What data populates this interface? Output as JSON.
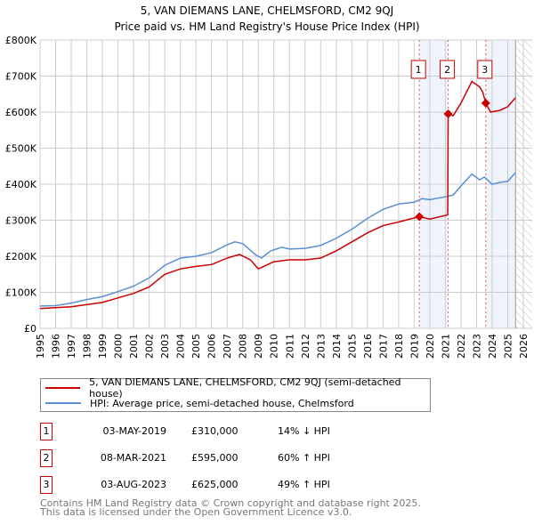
{
  "chart_data": {
    "type": "line",
    "title": "5, VAN DIEMANS LANE, CHELMSFORD, CM2 9QJ",
    "subtitle": "Price paid vs. HM Land Registry's House Price Index (HPI)",
    "ylim": [
      0,
      800000
    ],
    "xlim": [
      1995,
      2026
    ],
    "yticks": [
      {
        "v": 0,
        "label": "£0"
      },
      {
        "v": 100000,
        "label": "£100K"
      },
      {
        "v": 200000,
        "label": "£200K"
      },
      {
        "v": 300000,
        "label": "£300K"
      },
      {
        "v": 400000,
        "label": "£400K"
      },
      {
        "v": 500000,
        "label": "£500K"
      },
      {
        "v": 600000,
        "label": "£600K"
      },
      {
        "v": 700000,
        "label": "£700K"
      },
      {
        "v": 800000,
        "label": "£800K"
      }
    ],
    "xticks": [
      "1995",
      "1996",
      "1997",
      "1998",
      "1999",
      "2000",
      "2001",
      "2002",
      "2003",
      "2004",
      "2005",
      "2006",
      "2007",
      "2008",
      "2009",
      "2010",
      "2011",
      "2012",
      "2013",
      "2014",
      "2015",
      "2016",
      "2017",
      "2018",
      "2019",
      "2020",
      "2021",
      "2022",
      "2023",
      "2024",
      "2025",
      "2026"
    ],
    "grid": true,
    "colors": {
      "property": "#cc0000",
      "hpi": "#5b8fd4",
      "shade": "#eef3fc"
    },
    "series": [
      {
        "name": "5, VAN DIEMANS LANE, CHELMSFORD, CM2 9QJ (semi-detached house)",
        "points": [
          [
            1995,
            55000
          ],
          [
            1997,
            60000
          ],
          [
            1999,
            72000
          ],
          [
            2001,
            97000
          ],
          [
            2002,
            115000
          ],
          [
            2003,
            150000
          ],
          [
            2004,
            165000
          ],
          [
            2005,
            172000
          ],
          [
            2006,
            177000
          ],
          [
            2007,
            195000
          ],
          [
            2007.8,
            205000
          ],
          [
            2008.5,
            190000
          ],
          [
            2009,
            165000
          ],
          [
            2010,
            185000
          ],
          [
            2011,
            190000
          ],
          [
            2012,
            190000
          ],
          [
            2013,
            195000
          ],
          [
            2014,
            215000
          ],
          [
            2015,
            240000
          ],
          [
            2016,
            265000
          ],
          [
            2017,
            285000
          ],
          [
            2018,
            295000
          ],
          [
            2019.33,
            310000
          ],
          [
            2020,
            303000
          ],
          [
            2021.15,
            315000
          ],
          [
            2021.18,
            595000
          ],
          [
            2021.5,
            590000
          ],
          [
            2022,
            625000
          ],
          [
            2022.7,
            685000
          ],
          [
            2023.2,
            670000
          ],
          [
            2023.4,
            655000
          ],
          [
            2023.59,
            625000
          ],
          [
            2023.9,
            600000
          ],
          [
            2024.5,
            605000
          ],
          [
            2025,
            615000
          ],
          [
            2025.5,
            640000
          ]
        ]
      },
      {
        "name": "HPI: Average price, semi-detached house, Chelmsford",
        "points": [
          [
            1995,
            62000
          ],
          [
            1996,
            63000
          ],
          [
            1997,
            70000
          ],
          [
            1998,
            80000
          ],
          [
            1999,
            88000
          ],
          [
            2000,
            102000
          ],
          [
            2001,
            117000
          ],
          [
            2002,
            140000
          ],
          [
            2003,
            175000
          ],
          [
            2004,
            195000
          ],
          [
            2005,
            200000
          ],
          [
            2006,
            210000
          ],
          [
            2007,
            232000
          ],
          [
            2007.5,
            240000
          ],
          [
            2008,
            235000
          ],
          [
            2008.8,
            205000
          ],
          [
            2009.2,
            195000
          ],
          [
            2009.8,
            215000
          ],
          [
            2010.5,
            225000
          ],
          [
            2011,
            220000
          ],
          [
            2012,
            222000
          ],
          [
            2013,
            230000
          ],
          [
            2014,
            250000
          ],
          [
            2015,
            275000
          ],
          [
            2016,
            305000
          ],
          [
            2017,
            330000
          ],
          [
            2018,
            345000
          ],
          [
            2019,
            350000
          ],
          [
            2019.5,
            360000
          ],
          [
            2020,
            357000
          ],
          [
            2021,
            365000
          ],
          [
            2021.5,
            370000
          ],
          [
            2022,
            395000
          ],
          [
            2022.7,
            428000
          ],
          [
            2023.2,
            412000
          ],
          [
            2023.5,
            420000
          ],
          [
            2024,
            400000
          ],
          [
            2024.5,
            405000
          ],
          [
            2025,
            408000
          ],
          [
            2025.5,
            432000
          ]
        ]
      }
    ],
    "sales": [
      {
        "id": "1",
        "x": 2019.33,
        "price": 310000,
        "date": "03-MAY-2019",
        "price_label": "£310,000",
        "hpi": "14% ↓ HPI"
      },
      {
        "id": "2",
        "x": 2021.18,
        "price": 595000,
        "date": "08-MAR-2021",
        "price_label": "£595,000",
        "hpi": "60% ↑ HPI"
      },
      {
        "id": "3",
        "x": 2023.59,
        "price": 625000,
        "date": "03-AUG-2023",
        "price_label": "£625,000",
        "hpi": "49% ↑ HPI"
      }
    ],
    "data_end": 2025.5
  },
  "legend": {
    "property": "5, VAN DIEMANS LANE, CHELMSFORD, CM2 9QJ (semi-detached house)",
    "hpi": "HPI: Average price, semi-detached house, Chelmsford"
  },
  "footer": {
    "line1": "Contains HM Land Registry data © Crown copyright and database right 2025.",
    "line2": "This data is licensed under the Open Government Licence v3.0."
  }
}
